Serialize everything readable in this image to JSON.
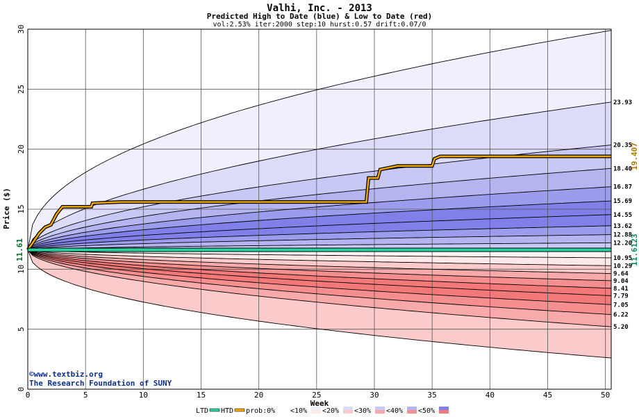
{
  "chart_data": {
    "type": "area",
    "title": "Valhi, Inc. - 2013",
    "subtitle": "Predicted High to Date (blue) &  Low to Date (red)",
    "params": "vol:2.53% iter:2000 step:10 hurst:0.57 drift:0.07/0",
    "xlabel": "Week",
    "ylabel": "Price ($)",
    "xlim": [
      0,
      50.5
    ],
    "ylim": [
      0,
      30
    ],
    "x_ticks": [
      0,
      5,
      10,
      15,
      20,
      25,
      30,
      35,
      40,
      45,
      50
    ],
    "y_ticks": [
      0,
      5,
      10,
      15,
      20,
      25,
      30
    ],
    "grid": true,
    "start_price": 11.61,
    "start_label": "11.61",
    "high_bands_end": [
      {
        "value": 23.93,
        "label": "23.93",
        "color": "#f0f0fc"
      },
      {
        "value": 20.35,
        "label": "20.35",
        "color": "#dcdcf8"
      },
      {
        "value": 18.4,
        "label": "18.40",
        "color": "#c8c8f4"
      },
      {
        "value": 16.87,
        "label": "16.87",
        "color": "#b4b4f0"
      },
      {
        "value": 15.69,
        "label": "15.69",
        "color": "#9c9cec"
      },
      {
        "value": 14.55,
        "label": "14.55",
        "color": "#8080e8"
      },
      {
        "value": 13.62,
        "label": "13.62",
        "color": "#8080e8"
      },
      {
        "value": 12.88,
        "label": "12.88",
        "color": "#9c9cec"
      },
      {
        "value": 12.2,
        "label": "12.20",
        "color": "#b4b4f0"
      }
    ],
    "low_bands_end": [
      {
        "value": 10.95,
        "label": "10.95",
        "color": "#fde8e8"
      },
      {
        "value": 10.29,
        "label": "10.29",
        "color": "#fbcaca"
      },
      {
        "value": 9.64,
        "label": "9.64",
        "color": "#f8aaaa"
      },
      {
        "value": 9.04,
        "label": "9.04",
        "color": "#f58e8e"
      },
      {
        "value": 8.41,
        "label": "8.41",
        "color": "#f37878"
      },
      {
        "value": 7.79,
        "label": "7.79",
        "color": "#f37878"
      },
      {
        "value": 7.05,
        "label": "7.05",
        "color": "#f58e8e"
      },
      {
        "value": 6.22,
        "label": "6.22",
        "color": "#f8aaaa"
      },
      {
        "value": 5.2,
        "label": "5.20",
        "color": "#fbcaca"
      }
    ],
    "outer_high_end": 29.9,
    "outer_low_end": 2.6,
    "series": [
      {
        "name": "HTD",
        "color": "#f0a800",
        "end_label": "19.407",
        "points": [
          [
            0,
            11.61
          ],
          [
            0.5,
            12.3
          ],
          [
            1,
            13.0
          ],
          [
            1.5,
            13.5
          ],
          [
            2,
            13.7
          ],
          [
            2.5,
            14.6
          ],
          [
            3,
            15.2
          ],
          [
            5.5,
            15.2
          ],
          [
            5.6,
            15.5
          ],
          [
            8,
            15.6
          ],
          [
            29.3,
            15.6
          ],
          [
            29.5,
            17.6
          ],
          [
            30.3,
            17.6
          ],
          [
            30.5,
            18.3
          ],
          [
            32,
            18.6
          ],
          [
            35,
            18.6
          ],
          [
            35.2,
            19.2
          ],
          [
            35.7,
            19.4
          ],
          [
            50.5,
            19.4
          ]
        ]
      },
      {
        "name": "LTD",
        "color": "#2ad4a0",
        "end_label": "11.6123",
        "points": [
          [
            0,
            11.61
          ],
          [
            50.5,
            11.61
          ]
        ]
      }
    ],
    "legend": {
      "ltd": "LTD",
      "htd": "HTD",
      "prob_label": "prob:0%",
      "items": [
        {
          "label": "<10%",
          "color_blue": "#f0f0fc",
          "color_red": "#fde8e8"
        },
        {
          "label": "<20%",
          "color_blue": "#dcdcf8",
          "color_red": "#fbcaca"
        },
        {
          "label": "<30%",
          "color_blue": "#c8c8f4",
          "color_red": "#f8aaaa"
        },
        {
          "label": "<40%",
          "color_blue": "#b4b4f0",
          "color_red": "#f58e8e"
        },
        {
          "label": "<50%",
          "color_blue": "#8080e8",
          "color_red": "#f37878"
        }
      ]
    },
    "copyright": [
      "©www.textbiz.org",
      "The Research Foundation of SUNY"
    ]
  }
}
